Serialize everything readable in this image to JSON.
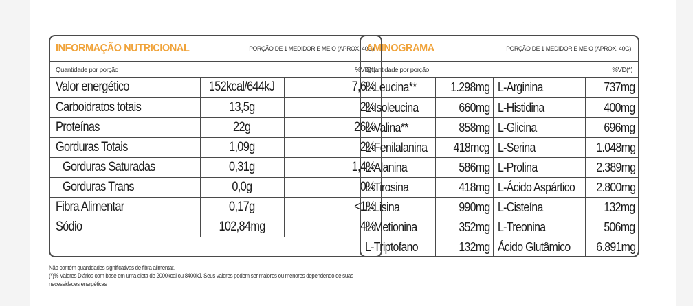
{
  "nutrition": {
    "title": "INFORMAÇÃO NUTRICIONAL",
    "portion": "PORÇÃO DE 1 MEDIDOR E MEIO (APROX. 40G)",
    "qty_label": "Quantidade por porção",
    "vd_label": "%VD(*)",
    "rows": [
      {
        "name": "Valor energético",
        "amount": "152kcal/644kJ",
        "vd": "7,6%"
      },
      {
        "name": "Carboidratos totais",
        "amount": "13,5g",
        "vd": "2%"
      },
      {
        "name": "Proteínas",
        "amount": "22g",
        "vd": "26%"
      },
      {
        "name": "Gorduras Totais",
        "amount": "1,09g",
        "vd": "2%"
      },
      {
        "name": "Gorduras Saturadas",
        "amount": "0,31g",
        "vd": "1,4%"
      },
      {
        "name": "Gorduras Trans",
        "amount": "0,0g",
        "vd": "0%"
      },
      {
        "name": "Fibra Alimentar",
        "amount": "0,17g",
        "vd": "<1%"
      },
      {
        "name": "Sódio",
        "amount": "102,84mg",
        "vd": "4%"
      }
    ]
  },
  "aminogram": {
    "title": "AMINOGRAMA",
    "portion": "PORÇÃO DE 1 MEDIDOR E MEIO (APROX. 40G)",
    "qty_label": "Quantidade por porção",
    "vd_label": "%VD(*)",
    "rows": [
      {
        "a_name": "L-Leucina**",
        "a_value": "1.298mg",
        "b_name": "L-Arginina",
        "b_value": "737mg"
      },
      {
        "a_name": "L-Isoleucina",
        "a_value": "660mg",
        "b_name": "L-Histidina",
        "b_value": "400mg"
      },
      {
        "a_name": "L-Valina**",
        "a_value": "858mg",
        "b_name": "L-Glicina",
        "b_value": "696mg"
      },
      {
        "a_name": "L-Fenilalanina",
        "a_value": "418mcg",
        "b_name": "L-Serina",
        "b_value": "1.048mg"
      },
      {
        "a_name": "L-Alanina",
        "a_value": "586mg",
        "b_name": "L-Prolina",
        "b_value": "2.389mg"
      },
      {
        "a_name": "L-Tirosina",
        "a_value": "418mg",
        "b_name": "L-Ácido Aspártico",
        "b_value": "2.800mg"
      },
      {
        "a_name": "L-Lisina",
        "a_value": "990mg",
        "b_name": "L-Cisteína",
        "b_value": "132mg"
      },
      {
        "a_name": "L-Metionina",
        "a_value": "352mg",
        "b_name": "L-Treonina",
        "b_value": "506mg"
      },
      {
        "a_name": "L-Triptofano",
        "a_value": "132mg",
        "b_name": "Ácido Glutâmico",
        "b_value": "6.891mg"
      }
    ]
  },
  "footnotes": [
    "Não contém quantidades significativas de fibra alimentar.",
    "(*)% Valores Diários com base em uma dieta de 2000kcal ou 8400kJ. Seus valores podem ser maiores ou menores dependendo de suas",
    "necessidades energéticas"
  ],
  "colors": {
    "title_accent": "#f0a33a",
    "border": "#4a4a4a"
  }
}
